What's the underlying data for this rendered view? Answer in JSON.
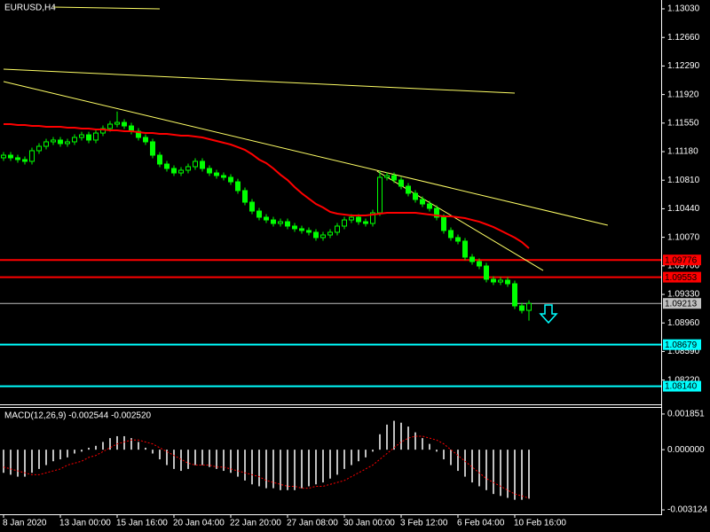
{
  "chart_data": [
    {
      "type": "candlestick",
      "title": "EURUSD,H4",
      "categories": [
        "8 Jan 2020",
        null,
        null,
        null,
        null,
        null,
        null,
        null,
        "13 Jan 00:00",
        null,
        null,
        null,
        null,
        null,
        null,
        null,
        "15 Jan 16:00",
        null,
        null,
        null,
        null,
        null,
        null,
        null,
        "20 Jan 04:00",
        null,
        null,
        null,
        null,
        null,
        null,
        null,
        "22 Jan 20:00",
        null,
        null,
        null,
        null,
        null,
        null,
        null,
        "27 Jan 08:00",
        null,
        null,
        null,
        null,
        null,
        null,
        null,
        "30 Jan 00:00",
        null,
        null,
        null,
        null,
        null,
        null,
        null,
        "3 Feb 12:00",
        null,
        null,
        null,
        null,
        null,
        null,
        null,
        "6 Feb 04:00",
        null,
        null,
        null,
        null,
        null,
        null,
        null,
        "10 Feb 16:00",
        null,
        null
      ],
      "open": [
        1.111,
        1.11134,
        1.111,
        1.11077,
        1.11054,
        1.11192,
        1.11249,
        1.11307,
        1.1133,
        1.11284,
        1.11307,
        1.11364,
        1.11398,
        1.1133,
        1.11421,
        1.11479,
        1.11536,
        1.11559,
        1.11513,
        1.11444,
        1.11364,
        1.11307,
        1.11134,
        1.11019,
        1.10962,
        1.10904,
        1.10939,
        1.10985,
        1.11054,
        1.10962,
        1.10904,
        1.1087,
        1.10847,
        1.10789,
        1.10675,
        1.10525,
        1.1041,
        1.1033,
        1.10295,
        1.10249,
        1.10272,
        1.10215,
        1.10181,
        1.10158,
        1.10135,
        1.10066,
        1.101,
        1.10135,
        1.10215,
        1.10295,
        1.1033,
        1.10272,
        1.10249,
        1.10387,
        1.10847,
        1.1087,
        1.10812,
        1.10732,
        1.1064,
        1.1056,
        1.10502,
        1.10445,
        1.1033,
        1.10158,
        1.10066,
        1.1002,
        1.09813,
        1.09755,
        1.09698,
        1.09526,
        1.09491,
        1.09514,
        1.09468,
        1.09181,
        1.09123
      ],
      "high": [
        1.11174,
        1.11174,
        1.1114,
        1.11117,
        1.11232,
        1.11289,
        1.11347,
        1.1137,
        1.1137,
        1.11347,
        1.11404,
        1.11438,
        1.11438,
        1.11461,
        1.11519,
        1.11576,
        1.117,
        1.11599,
        1.11553,
        1.11484,
        1.11404,
        1.11347,
        1.11174,
        1.11059,
        1.11002,
        1.10979,
        1.11025,
        1.11094,
        1.11094,
        1.11002,
        1.10944,
        1.1091,
        1.10887,
        1.10829,
        1.10715,
        1.10565,
        1.1045,
        1.1037,
        1.10335,
        1.10312,
        1.10312,
        1.10255,
        1.10221,
        1.10198,
        1.10175,
        1.1014,
        1.10175,
        1.10255,
        1.10335,
        1.1037,
        1.1037,
        1.10312,
        1.10427,
        1.1093,
        1.1091,
        1.1091,
        1.10852,
        1.10772,
        1.1068,
        1.106,
        1.10542,
        1.10485,
        1.1037,
        1.10198,
        1.10106,
        1.1006,
        1.09853,
        1.09795,
        1.09738,
        1.09566,
        1.09554,
        1.09554,
        1.09508,
        1.09221,
        1.09253
      ],
      "low": [
        1.1106,
        1.1106,
        1.11037,
        1.11014,
        1.11014,
        1.11152,
        1.11209,
        1.11267,
        1.11244,
        1.11244,
        1.11267,
        1.11324,
        1.1129,
        1.1129,
        1.11381,
        1.11439,
        1.11496,
        1.11473,
        1.11404,
        1.11324,
        1.11267,
        1.11094,
        1.10979,
        1.10922,
        1.10864,
        1.10864,
        1.10899,
        1.10945,
        1.10922,
        1.10864,
        1.1083,
        1.10807,
        1.10749,
        1.10635,
        1.10485,
        1.1037,
        1.1029,
        1.10255,
        1.10209,
        1.10209,
        1.10175,
        1.10141,
        1.10118,
        1.10095,
        1.10026,
        1.10026,
        1.1006,
        1.10095,
        1.10175,
        1.10255,
        1.10232,
        1.10209,
        1.10209,
        1.10347,
        1.10807,
        1.10772,
        1.10692,
        1.106,
        1.1052,
        1.10462,
        1.10405,
        1.1029,
        1.10118,
        1.10026,
        1.0998,
        1.09773,
        1.09715,
        1.09658,
        1.09486,
        1.09451,
        1.09451,
        1.09428,
        1.09141,
        1.09083,
        1.0899
      ],
      "close": [
        1.11134,
        1.111,
        1.11077,
        1.11054,
        1.11192,
        1.11249,
        1.11307,
        1.1133,
        1.11284,
        1.11307,
        1.11364,
        1.11398,
        1.1133,
        1.11421,
        1.11479,
        1.11536,
        1.11559,
        1.11513,
        1.11444,
        1.11364,
        1.11307,
        1.11134,
        1.11019,
        1.10962,
        1.10904,
        1.10939,
        1.10985,
        1.11054,
        1.10962,
        1.10904,
        1.1087,
        1.10847,
        1.10789,
        1.10675,
        1.10525,
        1.1041,
        1.1033,
        1.10295,
        1.10249,
        1.10272,
        1.10215,
        1.10181,
        1.10158,
        1.10135,
        1.10066,
        1.101,
        1.10135,
        1.10215,
        1.10295,
        1.1033,
        1.10272,
        1.10249,
        1.10387,
        1.10847,
        1.1087,
        1.10812,
        1.10732,
        1.1064,
        1.1056,
        1.10502,
        1.10445,
        1.1033,
        1.10158,
        1.10066,
        1.1002,
        1.09813,
        1.09755,
        1.09698,
        1.09526,
        1.09491,
        1.09514,
        1.09468,
        1.09181,
        1.09123,
        1.09213
      ],
      "color": "#00ff00",
      "ma": {
        "color": "#ff0000",
        "values": [
          1.11536,
          1.11536,
          1.11525,
          1.11525,
          1.11513,
          1.11513,
          1.11502,
          1.11502,
          1.11502,
          1.1149,
          1.1149,
          1.11479,
          1.11479,
          1.11467,
          1.11467,
          1.11456,
          1.11456,
          1.11444,
          1.11444,
          1.11433,
          1.11421,
          1.11421,
          1.1141,
          1.1141,
          1.11398,
          1.11387,
          1.11387,
          1.11375,
          1.11364,
          1.11341,
          1.11318,
          1.11295,
          1.11272,
          1.11238,
          1.11203,
          1.11146,
          1.11077,
          1.11031,
          1.10962,
          1.10881,
          1.10812,
          1.10721,
          1.1064,
          1.10571,
          1.10502,
          1.10456,
          1.10399,
          1.10376,
          1.10364,
          1.10353,
          1.10353,
          1.10353,
          1.10364,
          1.10376,
          1.10387,
          1.10387,
          1.10387,
          1.10387,
          1.10387,
          1.10376,
          1.10364,
          1.10353,
          1.10341,
          1.10341,
          1.1033,
          1.10318,
          1.10295,
          1.10272,
          1.10238,
          1.10203,
          1.10158,
          1.10112,
          1.10066,
          1.10008,
          1.09928
        ]
      },
      "trendlines": [
        {
          "color": "#ffff66",
          "x": [
            0,
            72
          ],
          "y": [
            1.12249,
            1.11938
          ]
        },
        {
          "color": "#ffff66",
          "x": [
            0,
            85.1
          ],
          "y": [
            1.12088,
            1.10226
          ]
        },
        {
          "color": "#ffff66",
          "x": [
            52.6,
            76
          ],
          "y": [
            1.10927,
            1.0964
          ]
        },
        {
          "color": "#ffff66",
          "x": [
            7,
            22
          ],
          "y": [
            1.13053,
            1.1303
          ]
        }
      ],
      "levels": [
        {
          "value": 1.09776,
          "color": "#ff0000"
        },
        {
          "value": 1.09553,
          "color": "#ff0000"
        },
        {
          "value": 1.09213,
          "color": "#c0c0c0"
        },
        {
          "value": 1.08679,
          "color": "#00ffff"
        },
        {
          "value": 1.0814,
          "label": "1.08140",
          "color": "#00ffff"
        }
      ],
      "ylim": [
        1.07917,
        1.13145
      ],
      "yticks": [
        {
          "value": 1.1303,
          "label": "1.13030"
        },
        {
          "value": 1.1266,
          "label": "1.12660"
        },
        {
          "value": 1.1229,
          "label": "1.12290"
        },
        {
          "value": 1.1192,
          "label": "1.11920"
        },
        {
          "value": 1.1155,
          "label": "1.11550"
        },
        {
          "value": 1.1118,
          "label": "1.11180"
        },
        {
          "value": 1.1081,
          "label": "1.10810"
        },
        {
          "value": 1.1044,
          "label": "1.10440"
        },
        {
          "value": 1.1007,
          "label": "1.10070"
        },
        {
          "value": 1.097,
          "label": "1.09700"
        },
        {
          "value": 1.0933,
          "label": "1.09330"
        },
        {
          "value": 1.0896,
          "label": "1.08960"
        },
        {
          "value": 1.0859,
          "label": "1.08590"
        },
        {
          "value": 1.0822,
          "label": "1.08220"
        }
      ],
      "grid": false
    },
    {
      "type": "macd",
      "title": "MACD(12,26,9) -0.002544 -0.002520",
      "series": [
        {
          "color": "#c0c0c0",
          "values": [
            -0.0012,
            -0.0013,
            -0.0014,
            -0.0014,
            -0.0012,
            -0.001,
            -0.0008,
            -0.0006,
            -0.0005,
            -0.0004,
            -0.0002,
            -0.0001,
            0.0001,
            0.0002,
            0.0004,
            0.0006,
            0.0007,
            0.0007,
            0.0006,
            0.0004,
            0.0001,
            -0.0002,
            -0.0005,
            -0.0008,
            -0.001,
            -0.0011,
            -0.001,
            -0.0008,
            -0.0008,
            -0.0009,
            -0.001,
            -0.0011,
            -0.0012,
            -0.0014,
            -0.0016,
            -0.0018,
            -0.0019,
            -0.002,
            -0.002,
            -0.0021,
            -0.0021,
            -0.0021,
            -0.002,
            -0.0019,
            -0.0018,
            -0.0017,
            -0.0015,
            -0.0013,
            -0.001,
            -0.0008,
            -0.0006,
            -0.0004,
            -0.0001,
            0.0008,
            0.0013,
            0.0015,
            0.0014,
            0.0012,
            0.0009,
            0.0006,
            0.0003,
            -0.0001,
            -0.0005,
            -0.0008,
            -0.0011,
            -0.0014,
            -0.0017,
            -0.0019,
            -0.0021,
            -0.0023,
            -0.0024,
            -0.0025,
            -0.0026,
            -0.0026,
            -0.002544
          ]
        },
        {
          "color": "#ff0000",
          "values": [
            -0.0009,
            -0.001,
            -0.0011,
            -0.0012,
            -0.0013,
            -0.0013,
            -0.0012,
            -0.0011,
            -0.001,
            -0.0008,
            -0.0007,
            -0.0006,
            -0.0004,
            -0.0003,
            -0.0001,
            0.0001,
            0.0003,
            0.0004,
            0.0005,
            0.0005,
            0.0004,
            0.0003,
            0.0001,
            -0.0001,
            -0.0003,
            -0.0005,
            -0.0007,
            -0.0008,
            -0.0008,
            -0.0008,
            -0.0009,
            -0.0009,
            -0.001,
            -0.0011,
            -0.0012,
            -0.0013,
            -0.0014,
            -0.0016,
            -0.0017,
            -0.0018,
            -0.0019,
            -0.0019,
            -0.002,
            -0.002,
            -0.0019,
            -0.0019,
            -0.0018,
            -0.0017,
            -0.0016,
            -0.0014,
            -0.0012,
            -0.001,
            -0.0008,
            -0.0005,
            -0.0002,
            0.0001,
            0.0004,
            0.0006,
            0.0007,
            0.0007,
            0.0006,
            0.0005,
            0.0003,
            0,
            -0.0003,
            -0.0006,
            -0.0009,
            -0.0012,
            -0.0015,
            -0.0017,
            -0.0019,
            -0.0021,
            -0.0023,
            -0.0024,
            -0.00252
          ]
        }
      ],
      "ylim": [
        -0.003352,
        0.00217
      ],
      "yticks": [
        0.001851,
        {
          "value": 0,
          "label": "0.000000"
        },
        -0.003124
      ]
    }
  ]
}
